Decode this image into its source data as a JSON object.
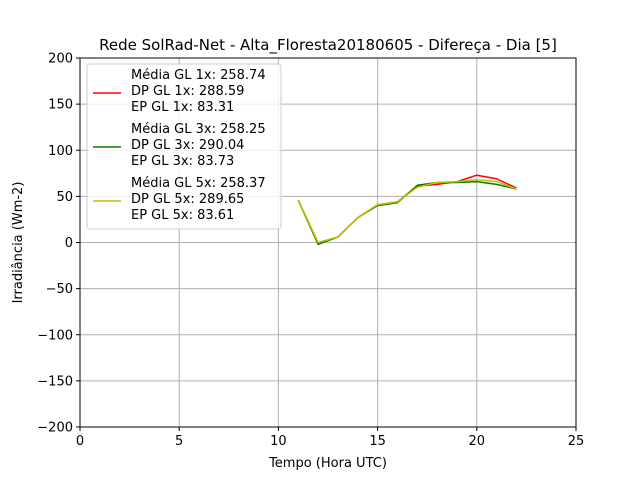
{
  "chart_data": {
    "type": "line",
    "title": "Rede SolRad-Net - Alta_Floresta20180605 - Difereça - Dia [5]",
    "xlabel": "Tempo (Hora UTC)",
    "ylabel": "Irradiância (Wm-2)",
    "xlim": [
      0,
      25
    ],
    "ylim": [
      -200,
      200
    ],
    "xticks": [
      0,
      5,
      10,
      15,
      20,
      25
    ],
    "xtick_labels": [
      "0",
      "5",
      "10",
      "15",
      "20",
      "25"
    ],
    "yticks": [
      -200,
      -150,
      -100,
      -50,
      0,
      50,
      100,
      150,
      200
    ],
    "ytick_labels": [
      "−200",
      "−150",
      "−100",
      "−50",
      "0",
      "50",
      "100",
      "150",
      "200"
    ],
    "grid": true,
    "legend_position": "upper-left",
    "x": [
      11,
      12,
      13,
      14,
      15,
      16,
      17,
      18,
      19,
      20,
      21,
      22
    ],
    "series": [
      {
        "color": "#ff0000",
        "legend": [
          "Média GL 1x: 258.74",
          "DP GL 1x: 288.59",
          "EP GL 1x: 83.31"
        ],
        "values": [
          46,
          -1,
          6,
          27,
          41,
          44,
          61,
          63,
          66,
          73,
          69,
          59
        ]
      },
      {
        "color": "#008000",
        "legend": [
          "Média GL 3x: 258.25",
          "DP GL 3x: 290.04",
          "EP GL 3x: 83.73"
        ],
        "values": [
          46,
          -2,
          6,
          27,
          40,
          43,
          62,
          65,
          65,
          66,
          63,
          58
        ]
      },
      {
        "color": "#bfbf00",
        "legend": [
          "Média GL 5x: 258.37",
          "DP GL 5x: 289.65",
          "EP GL 5x: 83.61"
        ],
        "values": [
          46,
          0,
          6,
          27,
          41,
          44,
          60,
          65,
          66,
          68,
          66,
          58
        ]
      }
    ]
  }
}
